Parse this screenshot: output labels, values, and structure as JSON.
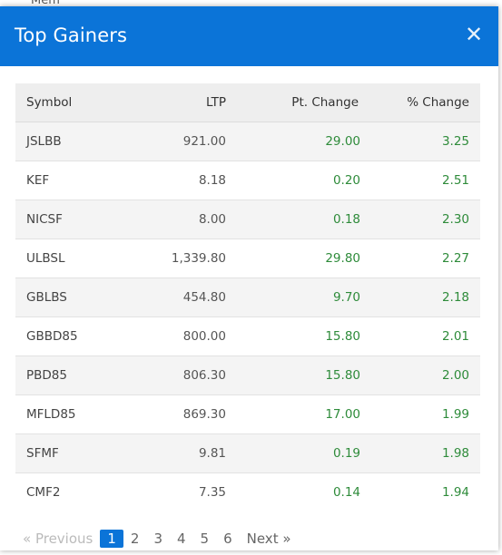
{
  "backdrop": {
    "text": "Mem"
  },
  "modal": {
    "title": "Top Gainers",
    "close_icon": "close-icon",
    "close_glyph": "✕"
  },
  "table": {
    "headers": {
      "symbol": "Symbol",
      "ltp": "LTP",
      "pt_change": "Pt. Change",
      "pct_change": "% Change"
    },
    "rows": [
      {
        "symbol": "JSLBB",
        "ltp": "921.00",
        "pt_change": "29.00",
        "pct_change": "3.25"
      },
      {
        "symbol": "KEF",
        "ltp": "8.18",
        "pt_change": "0.20",
        "pct_change": "2.51"
      },
      {
        "symbol": "NICSF",
        "ltp": "8.00",
        "pt_change": "0.18",
        "pct_change": "2.30"
      },
      {
        "symbol": "ULBSL",
        "ltp": "1,339.80",
        "pt_change": "29.80",
        "pct_change": "2.27"
      },
      {
        "symbol": "GBLBS",
        "ltp": "454.80",
        "pt_change": "9.70",
        "pct_change": "2.18"
      },
      {
        "symbol": "GBBD85",
        "ltp": "800.00",
        "pt_change": "15.80",
        "pct_change": "2.01"
      },
      {
        "symbol": "PBD85",
        "ltp": "806.30",
        "pt_change": "15.80",
        "pct_change": "2.00"
      },
      {
        "symbol": "MFLD85",
        "ltp": "869.30",
        "pt_change": "17.00",
        "pct_change": "1.99"
      },
      {
        "symbol": "SFMF",
        "ltp": "9.81",
        "pt_change": "0.19",
        "pct_change": "1.98"
      },
      {
        "symbol": "CMF2",
        "ltp": "7.35",
        "pt_change": "0.14",
        "pct_change": "1.94"
      }
    ]
  },
  "pagination": {
    "prev": "« Previous",
    "pages": [
      "1",
      "2",
      "3",
      "4",
      "5",
      "6"
    ],
    "active_page": "1",
    "next": "Next »"
  },
  "colors": {
    "header_bg": "#0b74d8",
    "positive": "#2e8b3a",
    "active_page": "#0b74d8"
  }
}
